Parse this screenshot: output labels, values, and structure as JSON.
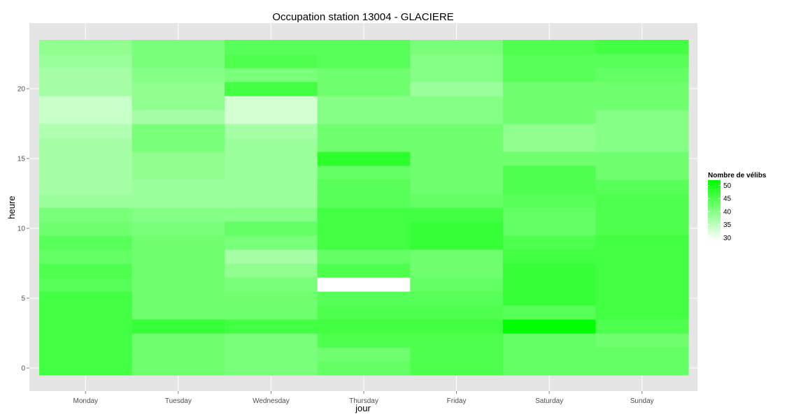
{
  "chart_data": {
    "type": "heatmap",
    "title": "Occupation station 13004 - GLACIERE",
    "xlabel": "jour",
    "ylabel": "heure",
    "categories": [
      "Monday",
      "Tuesday",
      "Wednesday",
      "Thursday",
      "Friday",
      "Saturday",
      "Sunday"
    ],
    "y": [
      0,
      1,
      2,
      3,
      4,
      5,
      6,
      7,
      8,
      9,
      10,
      11,
      12,
      13,
      14,
      15,
      16,
      17,
      18,
      19,
      20,
      21,
      22,
      23
    ],
    "yticks": [
      0,
      5,
      10,
      15,
      20
    ],
    "ylim": [
      -0.5,
      23.5
    ],
    "grid": true,
    "legend": {
      "title": "Nombre de vélibs",
      "position": "right",
      "ticks": [
        50,
        45,
        40,
        35,
        30
      ],
      "range": [
        29,
        52
      ]
    },
    "colors": {
      "low": "#ffffff",
      "high": "#00ff00",
      "panel": "#e5e5e5",
      "gridline": "#ffffff"
    },
    "values": [
      [
        46,
        42,
        41,
        43,
        45,
        43,
        43
      ],
      [
        46,
        42,
        41,
        42,
        45,
        43,
        43
      ],
      [
        46,
        42,
        41,
        45,
        45,
        43,
        42
      ],
      [
        46,
        47,
        46,
        46,
        46,
        52,
        45
      ],
      [
        46,
        42,
        42,
        45,
        45,
        44,
        46
      ],
      [
        46,
        42,
        42,
        44,
        44,
        47,
        46
      ],
      [
        44,
        42,
        41,
        29,
        43,
        47,
        46
      ],
      [
        45,
        42,
        39,
        45,
        42,
        47,
        46
      ],
      [
        43,
        42,
        37,
        43,
        42,
        46,
        46
      ],
      [
        44,
        42,
        41,
        46,
        47,
        45,
        46
      ],
      [
        42,
        41,
        43,
        46,
        47,
        43,
        45
      ],
      [
        41,
        40,
        40,
        46,
        46,
        43,
        45
      ],
      [
        38,
        38,
        38,
        44,
        43,
        44,
        45
      ],
      [
        37,
        38,
        38,
        44,
        42,
        45,
        44
      ],
      [
        37,
        39,
        38,
        43,
        42,
        45,
        42
      ],
      [
        37,
        39,
        38,
        48,
        42,
        42,
        42
      ],
      [
        37,
        41,
        38,
        42,
        42,
        39,
        40
      ],
      [
        36,
        41,
        37,
        42,
        42,
        39,
        40
      ],
      [
        34,
        37,
        33,
        40,
        40,
        42,
        40
      ],
      [
        34,
        39,
        33,
        40,
        40,
        42,
        42
      ],
      [
        37,
        39,
        46,
        42,
        38,
        42,
        42
      ],
      [
        37,
        40,
        41,
        42,
        40,
        44,
        43
      ],
      [
        38,
        41,
        45,
        44,
        40,
        44,
        44
      ],
      [
        39,
        41,
        44,
        44,
        41,
        45,
        46
      ]
    ]
  }
}
